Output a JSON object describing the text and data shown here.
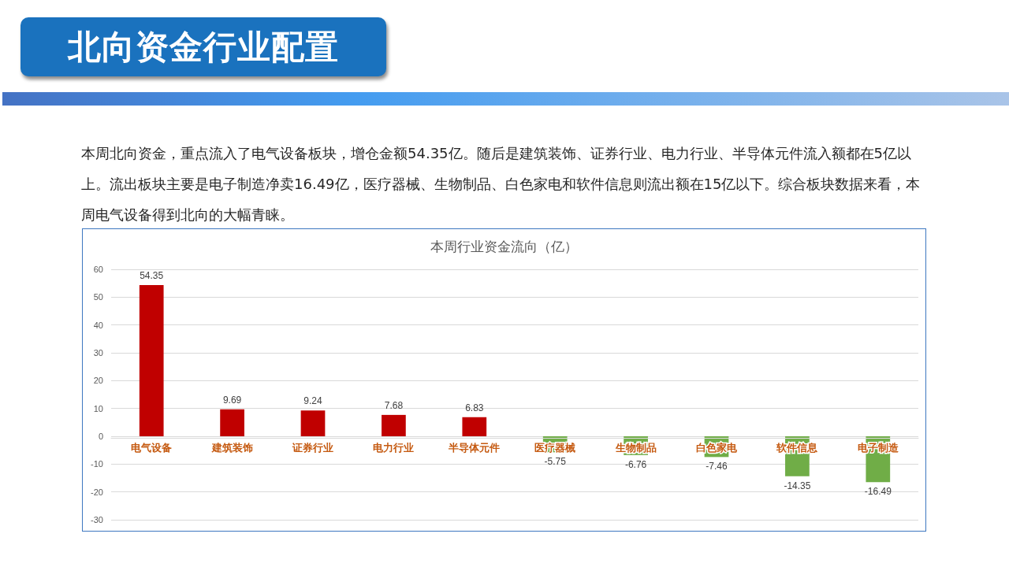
{
  "chart_data": {
    "type": "bar",
    "title": "本周行业资金流向（亿）",
    "annotations": [
      "北向资金行业配置",
      "本周北向资金，重点流入了电气设备板块，增仓金额54.35亿。随后是建筑装饰、证券行业、电力行业、半导体元件流入额都在5亿以上。流出板块主要是电子制造净卖16.49亿，医疗器械、生物制品、白色家电和软件信息则流出额在15亿以下。综合板块数据来看，本周电气设备得到北向的大幅青睐。"
    ],
    "categories": [
      "电气设备",
      "建筑装饰",
      "证券行业",
      "电力行业",
      "半导体元件",
      "医疗器械",
      "生物制品",
      "白色家电",
      "软件信息",
      "电子制造"
    ],
    "values": [
      54.35,
      9.69,
      9.24,
      7.68,
      6.83,
      -5.75,
      -6.76,
      -7.46,
      -14.35,
      -16.49
    ],
    "colors": [
      "#c00000",
      "#c00000",
      "#c00000",
      "#c00000",
      "#c00000",
      "#70ad47",
      "#70ad47",
      "#70ad47",
      "#70ad47",
      "#70ad47"
    ],
    "ylim": [
      -30,
      60
    ],
    "yticks": [
      -30,
      -20,
      -10,
      0,
      10,
      20,
      30,
      40,
      50,
      60
    ],
    "grid": "y",
    "data_labels": true
  }
}
